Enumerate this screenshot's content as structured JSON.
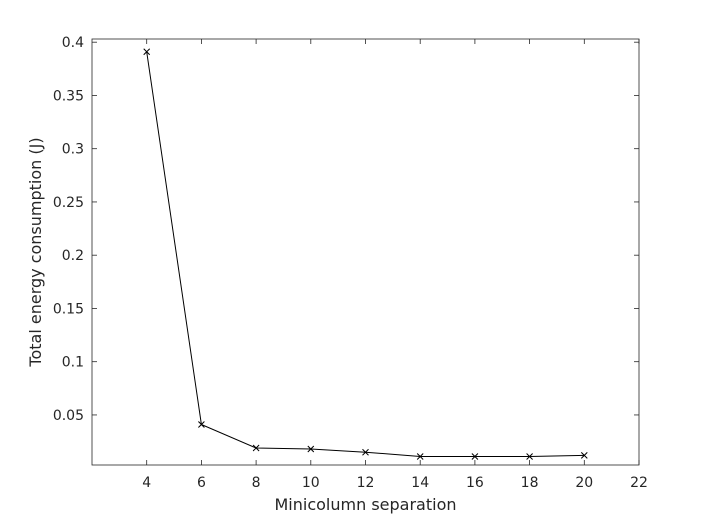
{
  "chart_data": {
    "type": "line",
    "title": "",
    "xlabel": "Minicolumn separation",
    "ylabel": "Total energy consumption (J)",
    "xlim": [
      2,
      22
    ],
    "ylim": [
      0.003,
      0.403
    ],
    "xticks": [
      4,
      6,
      8,
      10,
      12,
      14,
      16,
      18,
      20,
      22
    ],
    "xtick_labels": [
      "4",
      "6",
      "8",
      "10",
      "12",
      "14",
      "16",
      "18",
      "20",
      "22"
    ],
    "yticks": [
      0.05,
      0.1,
      0.15,
      0.2,
      0.25,
      0.3,
      0.35,
      0.4
    ],
    "ytick_labels": [
      "0.05",
      "0.1",
      "0.15",
      "0.2",
      "0.25",
      "0.3",
      "0.35",
      "0.4"
    ],
    "grid": false,
    "legend": "none",
    "series": [
      {
        "x": [
          4,
          6,
          8,
          10,
          12,
          14,
          16,
          18,
          20
        ],
        "y": [
          0.391,
          0.041,
          0.019,
          0.018,
          0.015,
          0.011,
          0.011,
          0.011,
          0.012
        ],
        "marker": "x",
        "color": "#000000"
      }
    ]
  }
}
